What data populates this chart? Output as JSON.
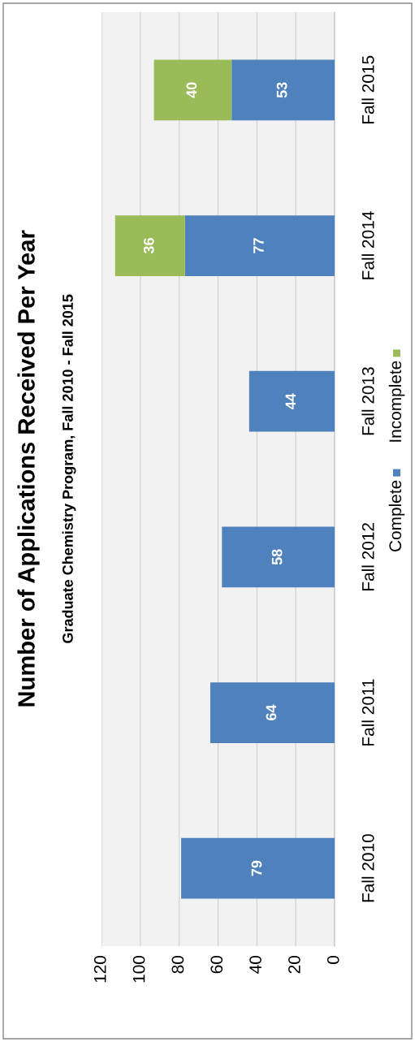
{
  "chart_data": {
    "type": "bar",
    "title": "Number of Applications Received Per Year",
    "subtitle": "Graduate Chemistry Program, Fall 2010 - Fall 2015",
    "orientation": "horizontal",
    "stacked": true,
    "categories": [
      "Fall 2015",
      "Fall 2014",
      "Fall 2013",
      "Fall 2012",
      "Fall 2011",
      "Fall 2010"
    ],
    "series": [
      {
        "name": "Complete",
        "color": "#4f81bd",
        "values": [
          53,
          77,
          44,
          58,
          64,
          79
        ]
      },
      {
        "name": "Incomplete",
        "color": "#9bbb59",
        "values": [
          40,
          36,
          null,
          null,
          null,
          null
        ]
      }
    ],
    "xlim": [
      120,
      0
    ],
    "xticks": [
      0,
      20,
      40,
      60,
      80,
      100,
      120
    ],
    "grid": "x",
    "legend": "right",
    "data_labels": true
  }
}
